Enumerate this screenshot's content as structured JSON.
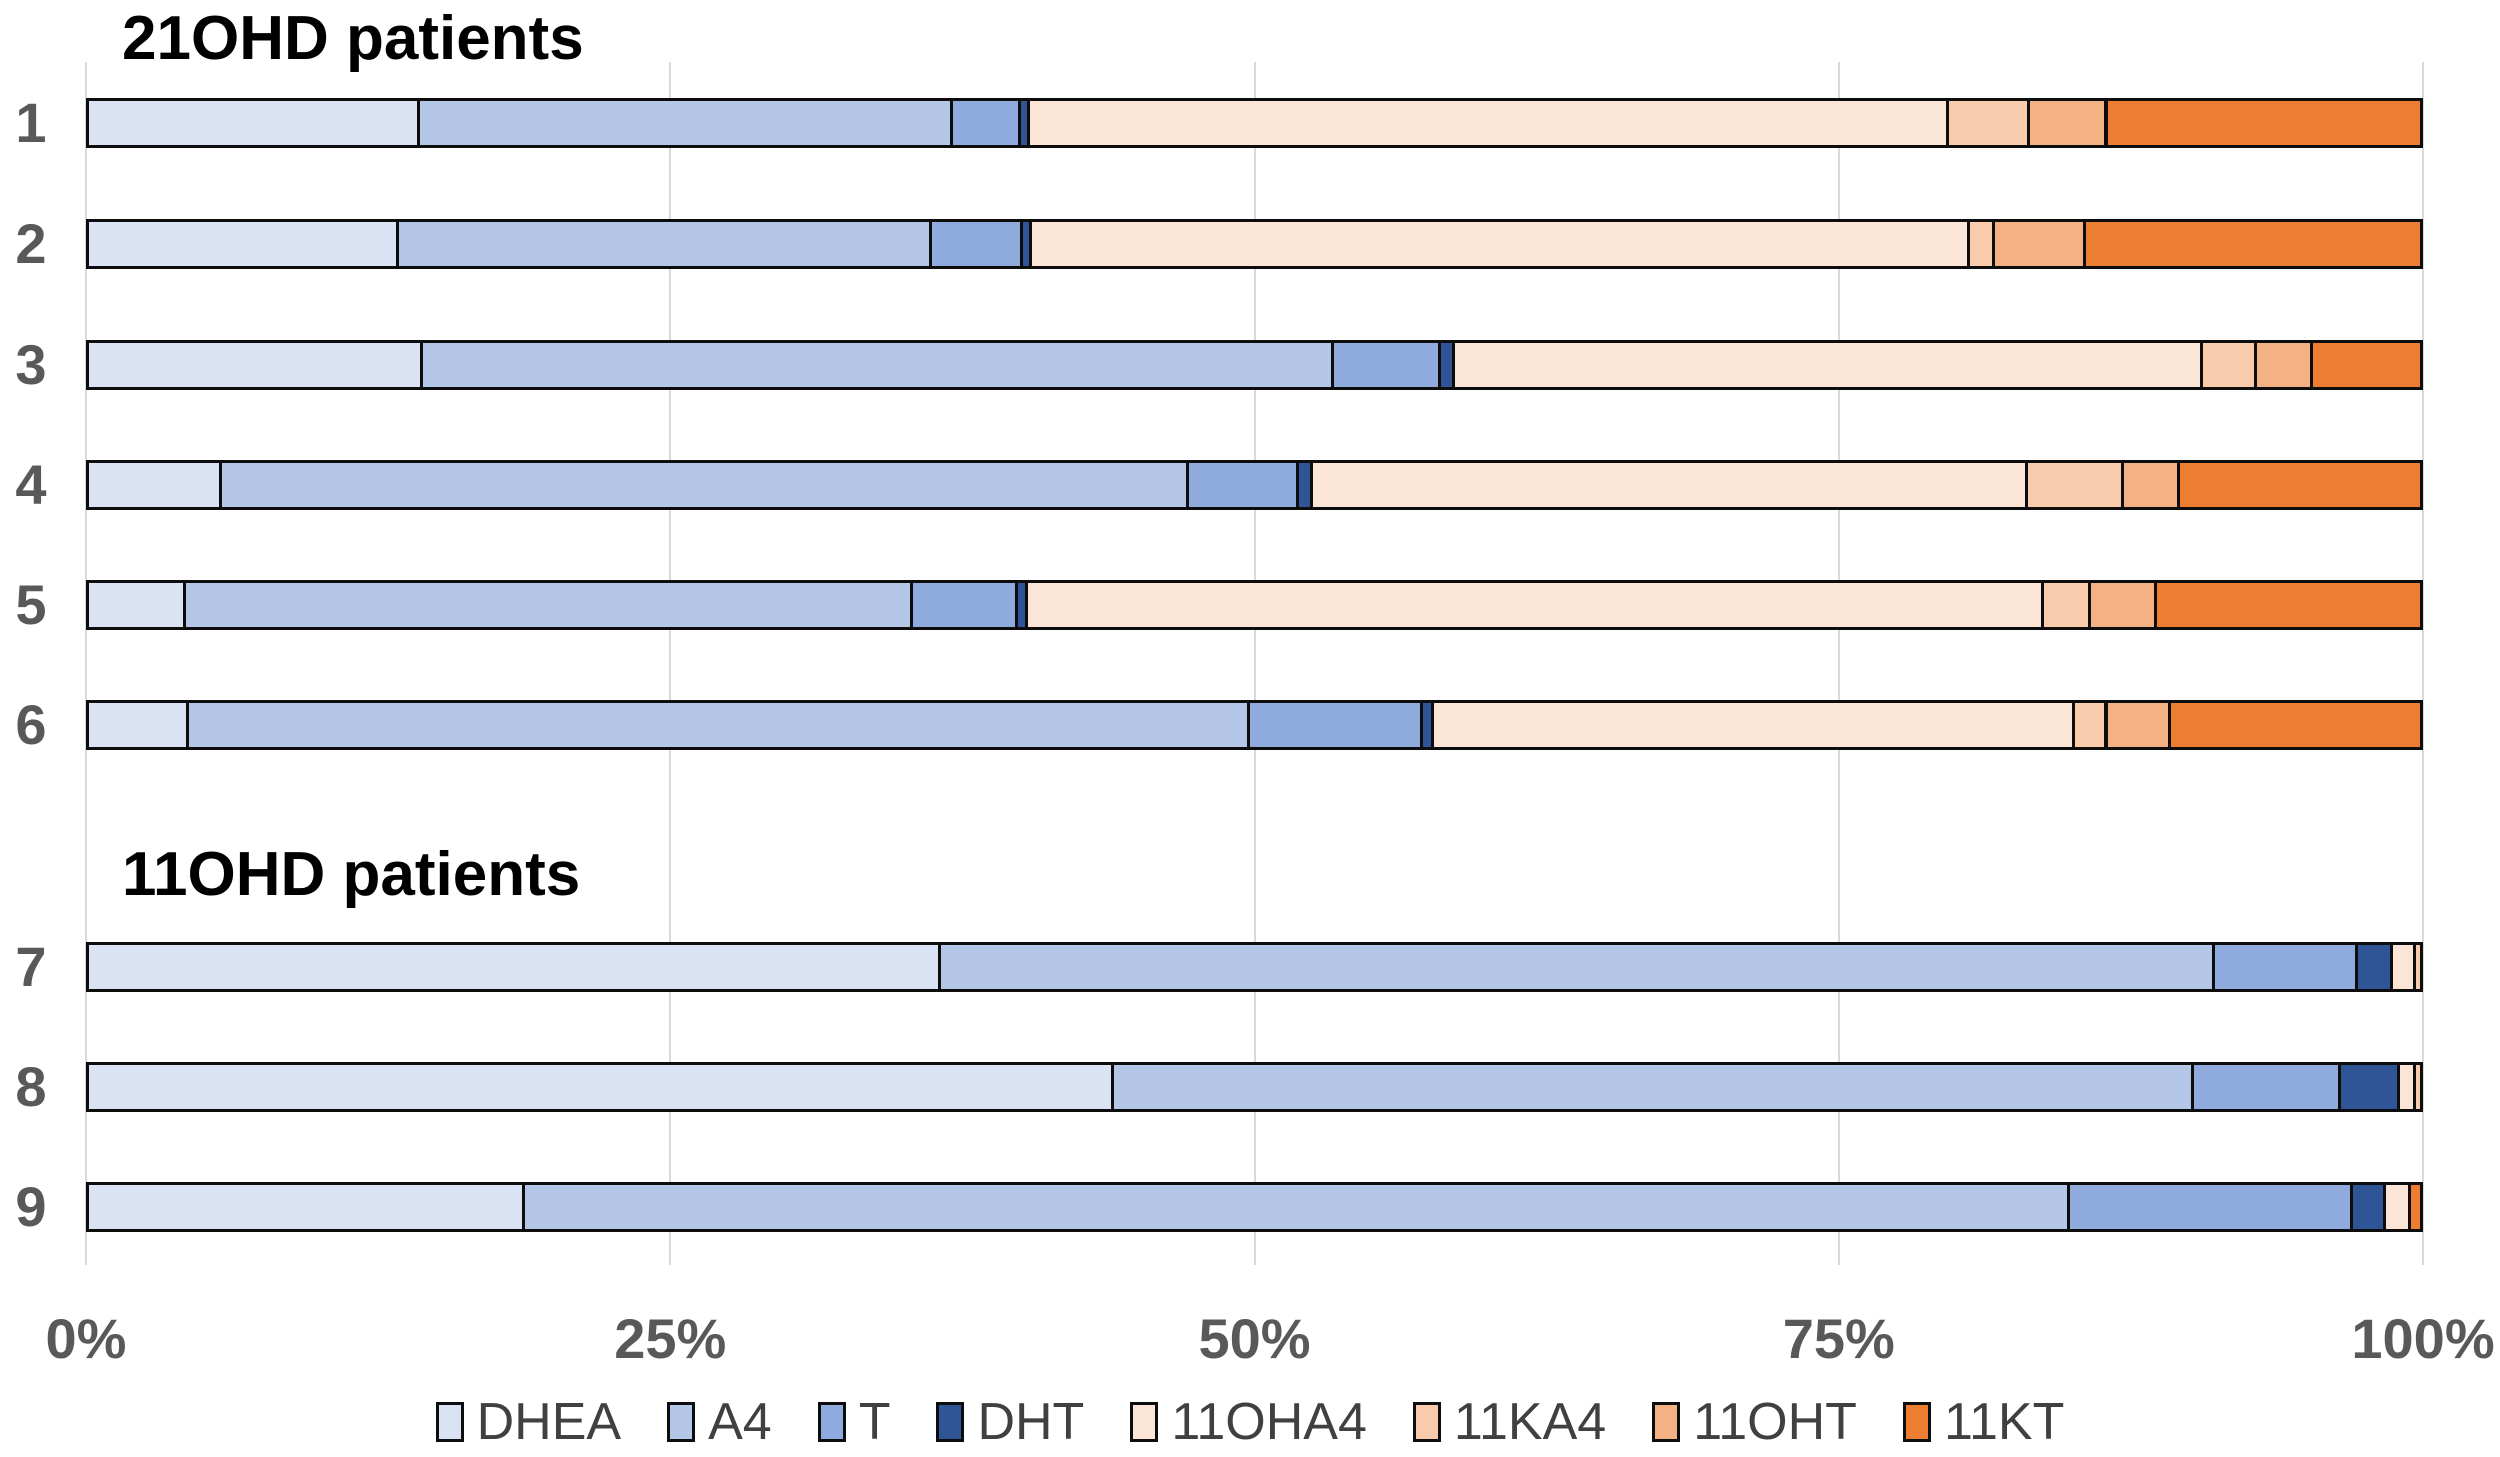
{
  "x_axis": {
    "ticks": [
      "0%",
      "25%",
      "50%",
      "75%",
      "100%"
    ],
    "tick_percents": [
      0,
      25,
      50,
      75,
      100
    ]
  },
  "legend": [
    "DHEA",
    "A4",
    "T",
    "DHT",
    "11OHA4",
    "11KA4",
    "11OHT",
    "11KT"
  ],
  "colors": {
    "DHEA": "#dae3f3",
    "A4": "#b4c7e7",
    "T": "#8faadc",
    "DHT": "#2f5597",
    "11OHA4": "#fbe5d6",
    "11KA4": "#f8cbad",
    "11OHT": "#f4b183",
    "11KT": "#ed7d31",
    "gridline": "#d9d9d9",
    "axis_text": "#595959",
    "segment_border": "#0d0d0d"
  },
  "chart_data": {
    "type": "bar",
    "orientation": "horizontal",
    "stacked": true,
    "units": "percent of total (100% stacked)",
    "xlim": [
      0,
      100
    ],
    "grid": "vertical at 0/25/50/75/100%",
    "legend_position": "bottom",
    "categories": [
      "1",
      "2",
      "3",
      "4",
      "5",
      "6",
      "7",
      "8",
      "9"
    ],
    "groups": [
      {
        "title": "21OHD patients",
        "patients": [
          "1",
          "2",
          "3",
          "4",
          "5",
          "6"
        ]
      },
      {
        "title": "11OHD patients",
        "patients": [
          "7",
          "8",
          "9"
        ]
      }
    ],
    "series": [
      {
        "name": "DHEA",
        "color": "#dae3f3",
        "values": [
          14.3,
          13.4,
          14.4,
          5.8,
          4.3,
          4.4,
          36.6,
          44.0,
          18.8
        ]
      },
      {
        "name": "A4",
        "color": "#b4c7e7",
        "values": [
          22.8,
          22.8,
          39.0,
          41.4,
          31.1,
          45.4,
          54.5,
          46.2,
          66.1
        ]
      },
      {
        "name": "T",
        "color": "#8faadc",
        "values": [
          2.9,
          3.9,
          4.6,
          4.7,
          4.5,
          7.4,
          6.1,
          6.3,
          12.1
        ]
      },
      {
        "name": "DHT",
        "color": "#2f5597",
        "values": [
          0.4,
          0.4,
          0.6,
          0.6,
          0.4,
          0.5,
          1.5,
          2.5,
          1.4
        ]
      },
      {
        "name": "11OHA4",
        "color": "#fbe5d6",
        "values": [
          39.3,
          40.1,
          32.0,
          30.6,
          43.5,
          27.4,
          1.0,
          0.7,
          1.1
        ]
      },
      {
        "name": "11KA4",
        "color": "#f8cbad",
        "values": [
          3.5,
          1.1,
          2.3,
          4.1,
          2.0,
          1.4,
          0.3,
          0.3,
          0.0
        ]
      },
      {
        "name": "11OHT",
        "color": "#f4b183",
        "values": [
          3.3,
          3.9,
          2.4,
          2.4,
          2.8,
          2.7,
          0.0,
          0.0,
          0.0
        ]
      },
      {
        "name": "11KT",
        "color": "#ed7d31",
        "values": [
          13.5,
          14.4,
          4.7,
          10.4,
          11.4,
          10.8,
          0.0,
          0.0,
          0.5
        ]
      }
    ]
  }
}
